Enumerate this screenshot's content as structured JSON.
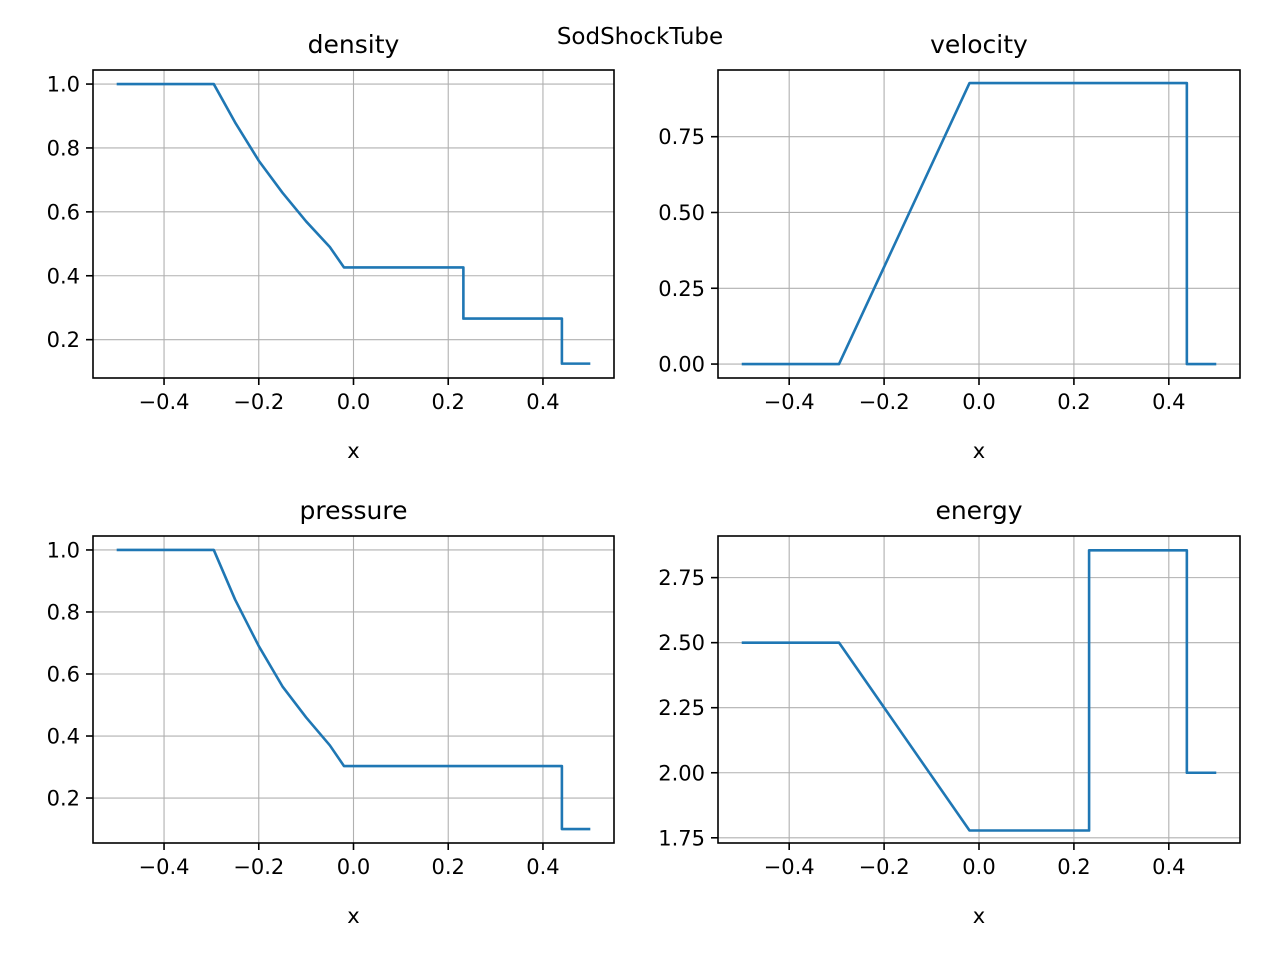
{
  "figure": {
    "suptitle": "SodShockTube"
  },
  "style": {
    "line_color": "#1f77b4",
    "grid_color": "#b0b0b0",
    "background": "#ffffff"
  },
  "chart_data": [
    {
      "type": "line",
      "title": "density",
      "xlabel": "x",
      "ylabel": "",
      "grid": true,
      "xlim": [
        -0.55,
        0.55
      ],
      "ylim": [
        0.08,
        1.044
      ],
      "xticks": [
        -0.4,
        -0.2,
        0.0,
        0.2,
        0.4
      ],
      "xtick_labels": [
        "−0.4",
        "−0.2",
        "0.0",
        "0.2",
        "0.4"
      ],
      "yticks": [
        0.2,
        0.4,
        0.6,
        0.8,
        1.0
      ],
      "ytick_labels": [
        "0.2",
        "0.4",
        "0.6",
        "0.8",
        "1.0"
      ],
      "series": [
        {
          "x": [
            -0.5,
            -0.295,
            -0.25,
            -0.2,
            -0.15,
            -0.1,
            -0.05,
            -0.02,
            0.232,
            0.232,
            0.44,
            0.44,
            0.5
          ],
          "y": [
            1.0,
            1.0,
            0.88,
            0.76,
            0.66,
            0.57,
            0.49,
            0.426,
            0.426,
            0.266,
            0.266,
            0.125,
            0.125
          ]
        }
      ]
    },
    {
      "type": "line",
      "title": "velocity",
      "xlabel": "x",
      "ylabel": "",
      "grid": true,
      "xlim": [
        -0.55,
        0.55
      ],
      "ylim": [
        -0.046,
        0.97
      ],
      "xticks": [
        -0.4,
        -0.2,
        0.0,
        0.2,
        0.4
      ],
      "xtick_labels": [
        "−0.4",
        "−0.2",
        "0.0",
        "0.2",
        "0.4"
      ],
      "yticks": [
        0.0,
        0.25,
        0.5,
        0.75
      ],
      "ytick_labels": [
        "0.00",
        "0.25",
        "0.50",
        "0.75"
      ],
      "series": [
        {
          "x": [
            -0.5,
            -0.295,
            -0.02,
            0.438,
            0.438,
            0.5
          ],
          "y": [
            0.0,
            0.0,
            0.927,
            0.927,
            0.0,
            0.0
          ]
        }
      ]
    },
    {
      "type": "line",
      "title": "pressure",
      "xlabel": "x",
      "ylabel": "",
      "grid": true,
      "xlim": [
        -0.55,
        0.55
      ],
      "ylim": [
        0.055,
        1.045
      ],
      "xticks": [
        -0.4,
        -0.2,
        0.0,
        0.2,
        0.4
      ],
      "xtick_labels": [
        "−0.4",
        "−0.2",
        "0.0",
        "0.2",
        "0.4"
      ],
      "yticks": [
        0.2,
        0.4,
        0.6,
        0.8,
        1.0
      ],
      "ytick_labels": [
        "0.2",
        "0.4",
        "0.6",
        "0.8",
        "1.0"
      ],
      "series": [
        {
          "x": [
            -0.5,
            -0.295,
            -0.25,
            -0.2,
            -0.15,
            -0.1,
            -0.05,
            -0.02,
            0.44,
            0.44,
            0.5
          ],
          "y": [
            1.0,
            1.0,
            0.84,
            0.69,
            0.56,
            0.46,
            0.37,
            0.303,
            0.303,
            0.1,
            0.1
          ]
        }
      ]
    },
    {
      "type": "line",
      "title": "energy",
      "xlabel": "x",
      "ylabel": "",
      "grid": true,
      "xlim": [
        -0.55,
        0.55
      ],
      "ylim": [
        1.73,
        2.91
      ],
      "xticks": [
        -0.4,
        -0.2,
        0.0,
        0.2,
        0.4
      ],
      "xtick_labels": [
        "−0.4",
        "−0.2",
        "0.0",
        "0.2",
        "0.4"
      ],
      "yticks": [
        1.75,
        2.0,
        2.25,
        2.5,
        2.75
      ],
      "ytick_labels": [
        "1.75",
        "2.00",
        "2.25",
        "2.50",
        "2.75"
      ],
      "series": [
        {
          "x": [
            -0.5,
            -0.295,
            -0.02,
            0.232,
            0.232,
            0.438,
            0.438,
            0.5
          ],
          "y": [
            2.5,
            2.5,
            1.778,
            1.778,
            2.855,
            2.855,
            2.0,
            2.0
          ]
        }
      ]
    }
  ]
}
